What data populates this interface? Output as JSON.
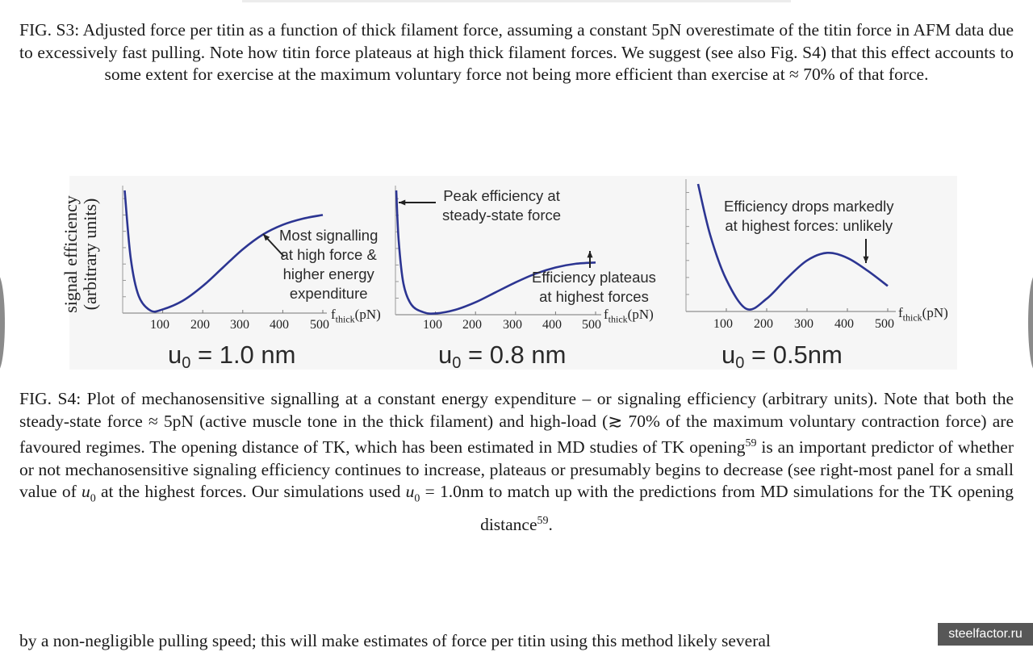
{
  "caption_s3": "FIG. S3: Adjusted force per titin as a function of thick filament force, assuming a constant 5pN overestimate of the titin force in AFM data due to excessively fast pulling. Note how titin force plateaus at high thick filament forces. We suggest (see also Fig. S4) that this effect accounts to some extent for exercise at the maximum voluntary force not being more efficient than exercise at ≈ 70% of that force.",
  "caption_s4_parts": {
    "a": "FIG. S4: Plot of mechanosensitive signalling at a constant energy expenditure – or signaling efficiency (arbitrary units). Note that both the steady-state force ≈ 5pN (active muscle tone in the thick filament) and high-load (≳ 70% of the maximum voluntary contraction force) are favoured regimes. The opening distance of TK, which has been estimated in MD studies of TK opening",
    "ref1": "59",
    "b": " is an important predictor of whether or not mechanosensitive signaling efficiency continues to increase, plateaus or presumably begins to decrease (see right-most panel for a small value of ",
    "u0a": "u",
    "u0a_sub": "0",
    "c": " at the highest forces. Our simulations used ",
    "u0b": "u",
    "u0b_sub": "0",
    "d": " = 1.0nm to match up with the predictions from MD simulations for the TK opening distance",
    "ref2": "59",
    "e": "."
  },
  "figure": {
    "ylabel_line1": "signal efficiency",
    "ylabel_line2": "(arbitrary units)",
    "xlabel_main": "f",
    "xlabel_sub": "thick",
    "xlabel_unit": "(pN)",
    "curve_color": "#2c3592",
    "panels": [
      {
        "u0_label": "u",
        "u0_sub": "0",
        "u0_value": " = 1.0 nm",
        "annotation": [
          "Most signalling",
          "at high force &",
          "higher energy",
          "expenditure"
        ],
        "ticks": [
          "100",
          "200",
          "300",
          "400",
          "500"
        ]
      },
      {
        "u0_label": "u",
        "u0_sub": "0",
        "u0_value": " = 0.8 nm",
        "annotation_top": [
          "Peak efficiency at",
          "steady-state force"
        ],
        "annotation_bottom": [
          "Efficiency plateaus",
          "at highest forces"
        ],
        "ticks": [
          "100",
          "200",
          "300",
          "400",
          "500"
        ]
      },
      {
        "u0_label": "u",
        "u0_sub": "0",
        "u0_value": " = 0.5nm",
        "annotation": [
          "Efficiency drops markedly",
          "at highest forces: unlikely"
        ],
        "ticks": [
          "100",
          "200",
          "300",
          "400",
          "500"
        ]
      }
    ]
  },
  "chart_data": [
    {
      "type": "line",
      "title": "u0 = 1.0 nm",
      "xlabel": "fthick(pN)",
      "ylabel": "signal efficiency (arbitrary units)",
      "xlim": [
        0,
        500
      ],
      "x": [
        5,
        20,
        40,
        70,
        100,
        150,
        200,
        250,
        300,
        350,
        400,
        450,
        500
      ],
      "y": [
        1.0,
        0.45,
        0.14,
        0.02,
        0.03,
        0.1,
        0.22,
        0.37,
        0.52,
        0.64,
        0.72,
        0.77,
        0.8
      ]
    },
    {
      "type": "line",
      "title": "u0 = 0.8 nm",
      "xlabel": "fthick(pN)",
      "ylabel": "signal efficiency (arbitrary units)",
      "xlim": [
        0,
        500
      ],
      "x": [
        2,
        8,
        20,
        40,
        70,
        100,
        150,
        200,
        250,
        300,
        350,
        400,
        450,
        500
      ],
      "y": [
        1.0,
        0.6,
        0.25,
        0.08,
        0.02,
        0.01,
        0.04,
        0.1,
        0.18,
        0.26,
        0.33,
        0.38,
        0.41,
        0.42
      ]
    },
    {
      "type": "line",
      "title": "u0 = 0.5nm",
      "xlabel": "fthick(pN)",
      "ylabel": "signal efficiency (arbitrary units)",
      "xlim": [
        0,
        500
      ],
      "x": [
        30,
        60,
        100,
        150,
        200,
        250,
        300,
        350,
        400,
        450,
        500
      ],
      "y": [
        1.0,
        0.6,
        0.25,
        0.02,
        0.1,
        0.26,
        0.4,
        0.46,
        0.42,
        0.32,
        0.2
      ]
    }
  ],
  "bottom_text": "by a non-negligible pulling speed; this will make estimates of force per titin using this method likely several",
  "watermark": "steelfactor.ru"
}
